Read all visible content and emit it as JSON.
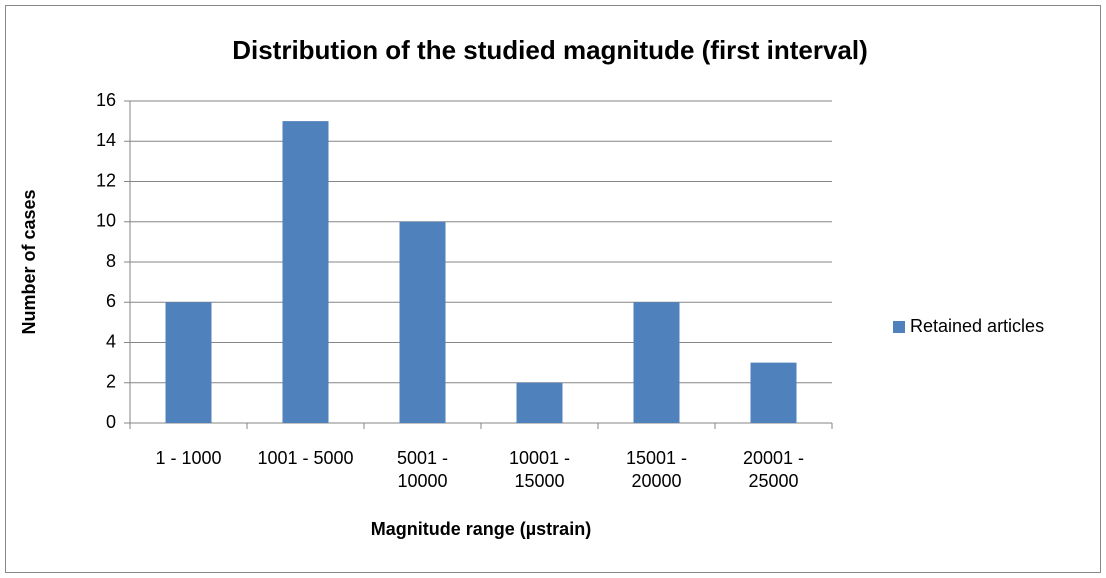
{
  "chart_data": {
    "type": "bar",
    "title": "Distribution of the studied magnitude (first interval)",
    "x_label": "Magnitude range (µstrain)",
    "y_label": "Number of cases",
    "categories": [
      "1 - 1000",
      "1001 - 5000",
      "5001 - 10000",
      "10001 - 15000",
      "15001 - 20000",
      "20001 - 25000"
    ],
    "series": [
      {
        "name": "Retained articles",
        "color": "#4f81bd",
        "values": [
          6,
          15,
          10,
          2,
          6,
          3
        ]
      }
    ],
    "ylim": [
      0,
      16
    ],
    "yticks": [
      0,
      2,
      4,
      6,
      8,
      10,
      12,
      14,
      16
    ],
    "grid": true,
    "legend": "right"
  }
}
